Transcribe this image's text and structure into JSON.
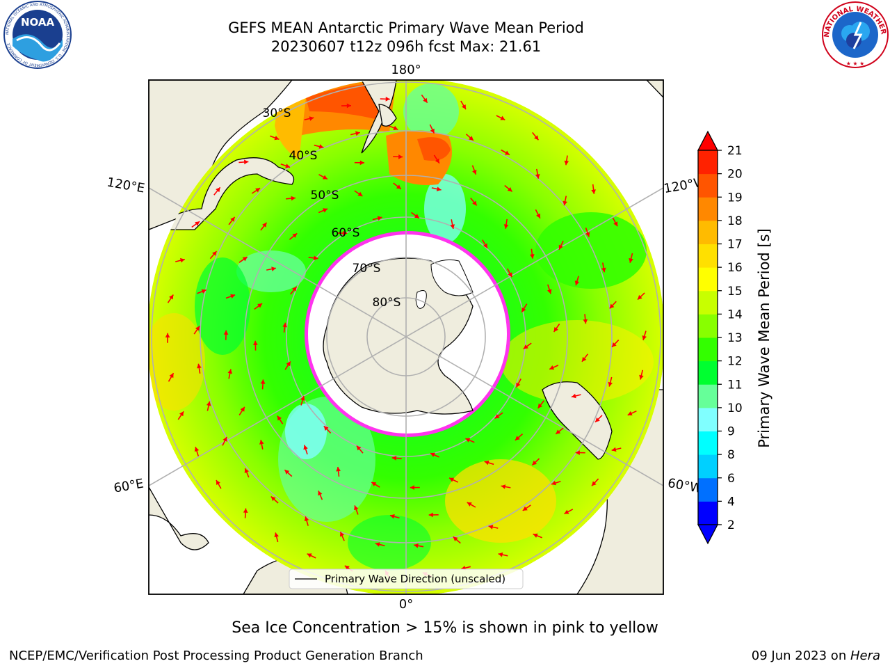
{
  "header": {
    "title_line1": "GEFS MEAN Antarctic Primary Wave Mean Period",
    "title_line2": "20230607 t12z 096h fcst   Max: 21.61"
  },
  "logos": {
    "noaa": "NOAA",
    "noaa_ring_text": "NATIONAL OCEANIC AND ATMOSPHERIC ADMINISTRATION · U.S. DEPARTMENT OF COMMERCE",
    "nws_ring_text": "NATIONAL WEATHER SERVICE"
  },
  "map": {
    "projection": "south polar stereographic",
    "longitude_labels": {
      "top": "180°",
      "bottom": "0°",
      "upper_left": "120°E",
      "upper_right": "120°W",
      "lower_left": "60°E",
      "lower_right": "60°W"
    },
    "latitude_labels": [
      "30°S",
      "40°S",
      "50°S",
      "60°S",
      "70°S",
      "80°S"
    ],
    "legend_label": "Primary Wave Direction (unscaled)",
    "arrow_color": "#ff0000",
    "land_color": "#efedde",
    "ice_color_low": "#ff00ff",
    "ice_color_high": "#ffff00"
  },
  "colorbar": {
    "label": "Primary Wave Mean Period [s]",
    "ticks": [
      "2",
      "4",
      "6",
      "8",
      "9",
      "10",
      "11",
      "12",
      "13",
      "14",
      "15",
      "16",
      "17",
      "18",
      "19",
      "20",
      "21"
    ],
    "colors": [
      "#0000ff",
      "#0070ff",
      "#00d0ff",
      "#00ffff",
      "#80ffff",
      "#66ff99",
      "#00ff30",
      "#33ff00",
      "#88ff00",
      "#c8ff00",
      "#ffff00",
      "#ffe000",
      "#ffbb00",
      "#ff8800",
      "#ff5500",
      "#ff2200",
      "#ff0000"
    ],
    "extend": "both"
  },
  "note": "Sea Ice Concentration > 15% is shown in pink to yellow",
  "footer": {
    "left": "NCEP/EMC/Verification Post Processing Product Generation Branch",
    "right_date": "09 Jun 2023 on ",
    "right_host": "Hera"
  }
}
